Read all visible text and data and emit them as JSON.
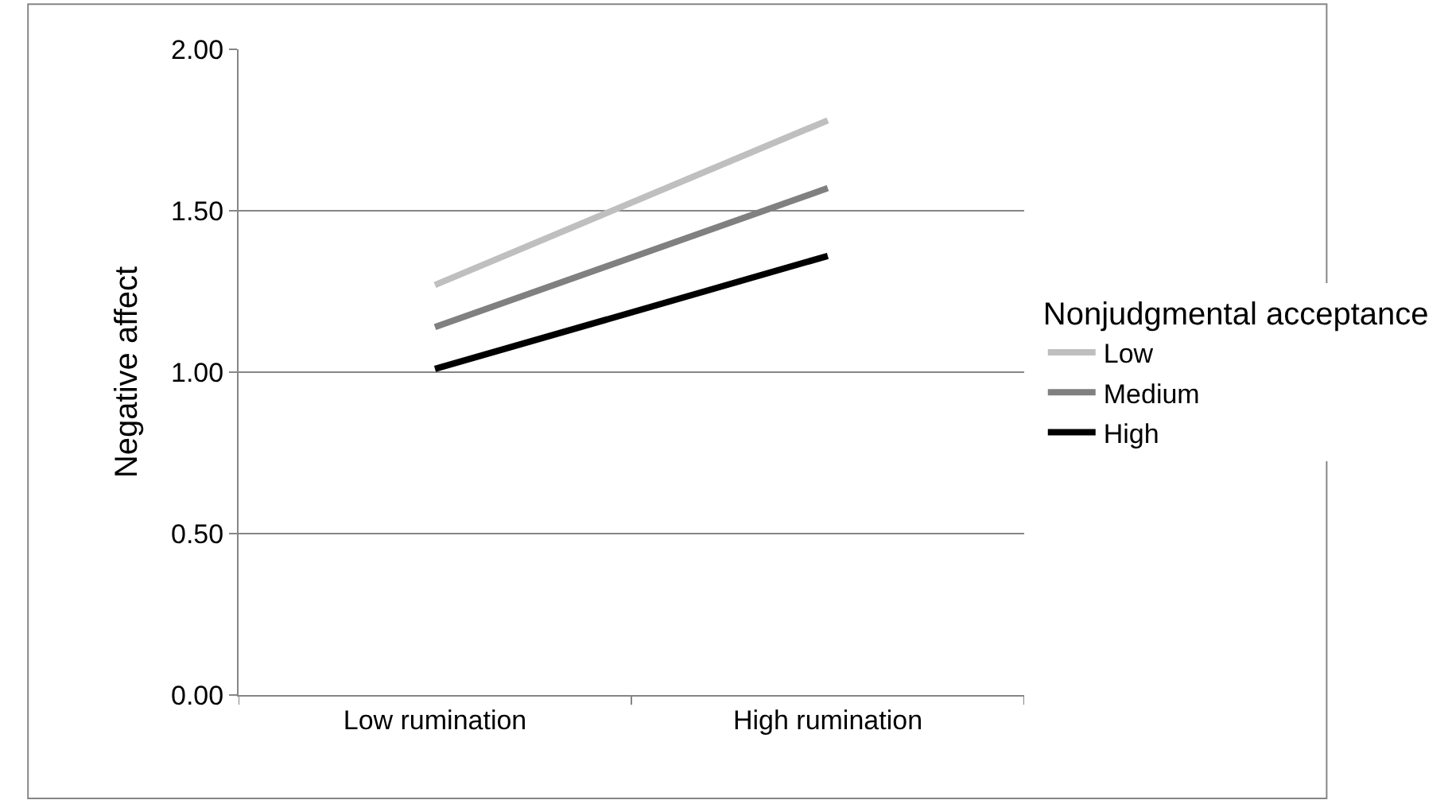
{
  "chart_data": {
    "type": "line",
    "ylabel": "Negative affect",
    "legend_title": "Nonjudgmental acceptance",
    "categories": [
      "Low rumination",
      "High rumination"
    ],
    "series": [
      {
        "name": "Low",
        "color": "#bfbfbf",
        "values": [
          1.27,
          1.78
        ]
      },
      {
        "name": "Medium",
        "color": "#808080",
        "values": [
          1.14,
          1.57
        ]
      },
      {
        "name": "High",
        "color": "#000000",
        "values": [
          1.01,
          1.36
        ]
      }
    ],
    "ylim": [
      0,
      2
    ],
    "yticks": [
      {
        "value": 0,
        "label": "0.00"
      },
      {
        "value": 0.5,
        "label": "0.50"
      },
      {
        "value": 1,
        "label": "1.00"
      },
      {
        "value": 1.5,
        "label": "1.50"
      },
      {
        "value": 2,
        "label": "2.00"
      }
    ],
    "grid": "y",
    "legend": "right",
    "marker": "none",
    "line_style": "solid"
  }
}
